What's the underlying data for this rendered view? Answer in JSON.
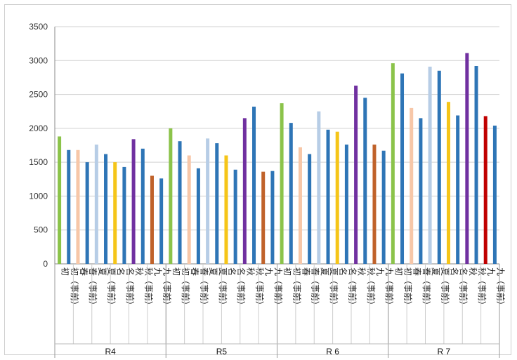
{
  "chart_data": {
    "type": "bar",
    "title": "",
    "xlabel": "",
    "ylabel": "",
    "ylim": [
      0,
      3500
    ],
    "yticks": [
      0,
      500,
      1000,
      1500,
      2000,
      2500,
      3000,
      3500
    ],
    "grid": true,
    "legend": "none",
    "groups": [
      {
        "label": "R4",
        "categories": [
          {
            "tick": "初",
            "values": [
              1880,
              1680
            ]
          },
          {
            "tick": "春",
            "values": [
              1680,
              1500
            ]
          },
          {
            "tick": "夏",
            "values": [
              1760,
              1620
            ]
          },
          {
            "tick": "名",
            "values": [
              1500,
              1430
            ]
          },
          {
            "tick": "秋",
            "values": [
              1840,
              1700
            ]
          },
          {
            "tick": "九",
            "values": [
              1300,
              1260
            ]
          }
        ]
      },
      {
        "label": "R5",
        "categories": [
          {
            "tick": "初",
            "values": [
              2000,
              1810
            ]
          },
          {
            "tick": "春",
            "values": [
              1600,
              1410
            ]
          },
          {
            "tick": "夏",
            "values": [
              1850,
              1780
            ]
          },
          {
            "tick": "名",
            "values": [
              1600,
              1390
            ]
          },
          {
            "tick": "秋",
            "values": [
              2150,
              2320
            ]
          },
          {
            "tick": "九",
            "values": [
              1360,
              1370
            ]
          }
        ]
      },
      {
        "label": "R 6",
        "categories": [
          {
            "tick": "初",
            "values": [
              2370,
              2080
            ]
          },
          {
            "tick": "春",
            "values": [
              1720,
              1620
            ]
          },
          {
            "tick": "夏",
            "values": [
              2250,
              1980
            ]
          },
          {
            "tick": "名",
            "values": [
              1950,
              1760
            ]
          },
          {
            "tick": "秋",
            "values": [
              2630,
              2450
            ]
          },
          {
            "tick": "九",
            "values": [
              1760,
              1670
            ]
          }
        ]
      },
      {
        "label": "R 7",
        "categories": [
          {
            "tick": "初",
            "values": [
              2960,
              2810
            ]
          },
          {
            "tick": "春",
            "values": [
              2300,
              2150
            ]
          },
          {
            "tick": "夏",
            "values": [
              2910,
              2850
            ]
          },
          {
            "tick": "名",
            "values": [
              2390,
              2190
            ]
          },
          {
            "tick": "秋",
            "values": [
              3110,
              2920
            ]
          },
          {
            "tick": "九",
            "values": [
              2180,
              2040
            ]
          }
        ]
      }
    ],
    "sub_labels": [
      "",
      "（事前）"
    ],
    "colors": {
      "初": "#8bc34a",
      "春": "#f7c7a8",
      "夏": "#b7cde6",
      "名": "#f5c518",
      "秋": "#7030a0",
      "九": "#c0622a",
      "九_R7": "#c00000",
      "事前": "#2e75b6"
    }
  }
}
